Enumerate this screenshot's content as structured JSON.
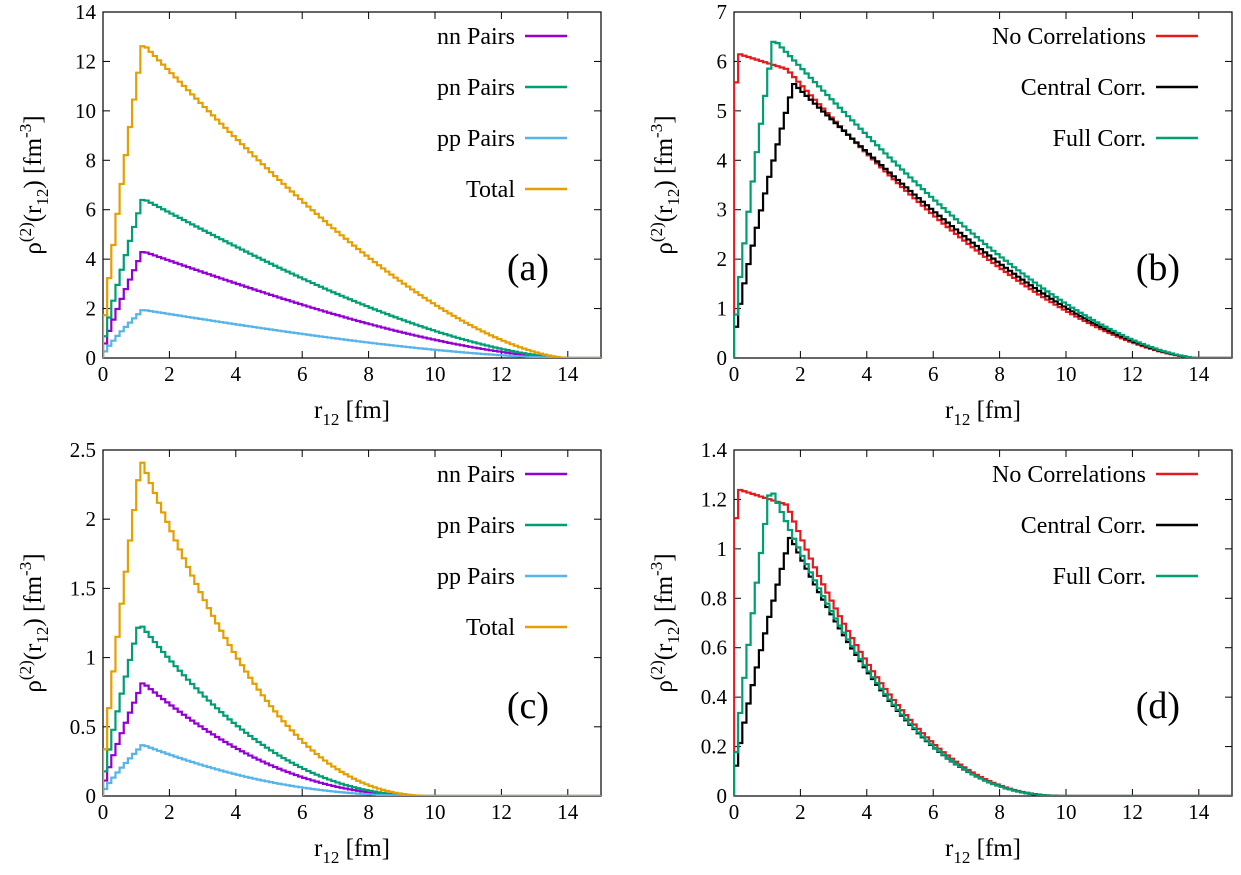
{
  "chart_data": [
    {
      "id": "a",
      "type": "line",
      "panel_label": "(a)",
      "xlabel": {
        "base": "r",
        "sub": "12",
        "rest": " [fm]"
      },
      "ylabel": {
        "rho": "ρ",
        "sup": "(2)",
        "open": "(r",
        "sub": "12",
        "close": ") [fm",
        "unit_sup": "-3",
        "end": "]"
      },
      "xlim": [
        0,
        15
      ],
      "ylim": [
        0,
        14
      ],
      "xticks": [
        0,
        2,
        4,
        6,
        8,
        10,
        12,
        14
      ],
      "yticks": [
        0,
        2,
        4,
        6,
        8,
        10,
        12,
        14
      ],
      "legend_position": "top-right",
      "series": [
        {
          "name": "nn Pairs",
          "color": "#9400d3",
          "kind": "rise",
          "peak": 4.32,
          "rpeak": 1.2,
          "rmax": 14.0,
          "pw": 1.0
        },
        {
          "name": "pn Pairs",
          "color": "#009e73",
          "kind": "rise",
          "peak": 6.45,
          "rpeak": 1.2,
          "rmax": 14.0,
          "pw": 1.0
        },
        {
          "name": "pp Pairs",
          "color": "#56b4e9",
          "kind": "rise",
          "peak": 1.95,
          "rpeak": 1.2,
          "rmax": 14.0,
          "pw": 1.0
        },
        {
          "name": "Total",
          "color": "#e69f00",
          "kind": "rise",
          "peak": 12.72,
          "rpeak": 1.2,
          "rmax": 14.0,
          "pw": 1.0
        }
      ]
    },
    {
      "id": "b",
      "type": "line",
      "panel_label": "(b)",
      "xlabel": {
        "base": "r",
        "sub": "12",
        "rest": " [fm]"
      },
      "ylabel": {
        "rho": "ρ",
        "sup": "(2)",
        "open": "(r",
        "sub": "12",
        "close": ") [fm",
        "unit_sup": "-3",
        "end": "]"
      },
      "xlim": [
        0,
        15
      ],
      "ylim": [
        0,
        7
      ],
      "xticks": [
        0,
        2,
        4,
        6,
        8,
        10,
        12,
        14
      ],
      "yticks": [
        0,
        1,
        2,
        3,
        4,
        5,
        6,
        7
      ],
      "legend_position": "top-right",
      "series": [
        {
          "name": "No Correlations",
          "color": "#e41a1c",
          "kind": "flat",
          "peak": 6.15,
          "rpeak": 0.15,
          "rmax": 14.0,
          "pw": 1.0
        },
        {
          "name": "Central Corr.",
          "color": "#000000",
          "kind": "rise",
          "peak": 5.55,
          "rpeak": 1.8,
          "rmax": 14.0,
          "pw": 1.0
        },
        {
          "name": "Full Corr.",
          "color": "#009e73",
          "kind": "rise",
          "peak": 6.45,
          "rpeak": 1.2,
          "rmax": 14.0,
          "pw": 1.0
        }
      ]
    },
    {
      "id": "c",
      "type": "line",
      "panel_label": "(c)",
      "xlabel": {
        "base": "r",
        "sub": "12",
        "rest": " [fm]"
      },
      "ylabel": {
        "rho": "ρ",
        "sup": "(2)",
        "open": "(r",
        "sub": "12",
        "close": ") [fm",
        "unit_sup": "-3",
        "end": "]"
      },
      "xlim": [
        0,
        15
      ],
      "ylim": [
        0,
        2.5
      ],
      "xticks": [
        0,
        2,
        4,
        6,
        8,
        10,
        12,
        14
      ],
      "yticks": [
        0,
        0.5,
        1,
        1.5,
        2,
        2.5
      ],
      "legend_position": "top-right",
      "series": [
        {
          "name": "nn Pairs",
          "color": "#9400d3",
          "kind": "rise",
          "peak": 0.82,
          "rpeak": 1.2,
          "rmax": 10.0,
          "pw": 1.5
        },
        {
          "name": "pn Pairs",
          "color": "#009e73",
          "kind": "rise",
          "peak": 1.25,
          "rpeak": 1.1,
          "rmax": 10.0,
          "pw": 1.5
        },
        {
          "name": "pp Pairs",
          "color": "#56b4e9",
          "kind": "rise",
          "peak": 0.37,
          "rpeak": 1.2,
          "rmax": 10.0,
          "pw": 1.5
        },
        {
          "name": "Total",
          "color": "#e69f00",
          "kind": "rise",
          "peak": 2.43,
          "rpeak": 1.15,
          "rmax": 10.0,
          "pw": 1.5
        }
      ]
    },
    {
      "id": "d",
      "type": "line",
      "panel_label": "(d)",
      "xlabel": {
        "base": "r",
        "sub": "12",
        "rest": " [fm]"
      },
      "ylabel": {
        "rho": "ρ",
        "sup": "(2)",
        "open": "(r",
        "sub": "12",
        "close": ") [fm",
        "unit_sup": "-3",
        "end": "]"
      },
      "xlim": [
        0,
        15
      ],
      "ylim": [
        0,
        1.4
      ],
      "xticks": [
        0,
        2,
        4,
        6,
        8,
        10,
        12,
        14
      ],
      "yticks": [
        0,
        0.2,
        0.4,
        0.6,
        0.8,
        1,
        1.2,
        1.4
      ],
      "legend_position": "top-right",
      "series": [
        {
          "name": "No Correlations",
          "color": "#e41a1c",
          "kind": "flat",
          "peak": 1.24,
          "rpeak": 0.15,
          "rmax": 10.0,
          "pw": 1.5
        },
        {
          "name": "Central Corr.",
          "color": "#000000",
          "kind": "rise",
          "peak": 1.05,
          "rpeak": 1.7,
          "rmax": 10.0,
          "pw": 1.5
        },
        {
          "name": "Full Corr.",
          "color": "#009e73",
          "kind": "rise",
          "peak": 1.25,
          "rpeak": 1.1,
          "rmax": 10.0,
          "pw": 1.5
        }
      ]
    }
  ]
}
